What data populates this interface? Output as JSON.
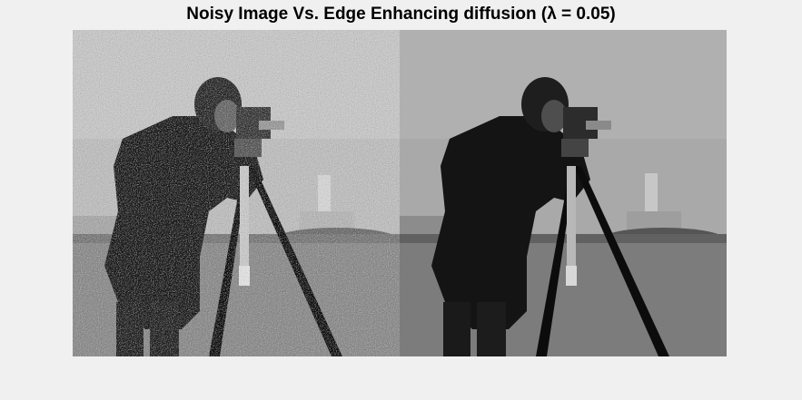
{
  "figure": {
    "title": "Noisy Image Vs. Edge Enhancing diffusion (λ = 0.05)",
    "background_color": "#f0f0f0"
  },
  "panels": [
    {
      "id": "noisy",
      "content": "cameraman photograph with heavy additive noise",
      "icon": "photo-icon"
    },
    {
      "id": "diffused",
      "content": "cameraman photograph after edge enhancing diffusion, smoothed",
      "icon": "photo-icon"
    }
  ]
}
